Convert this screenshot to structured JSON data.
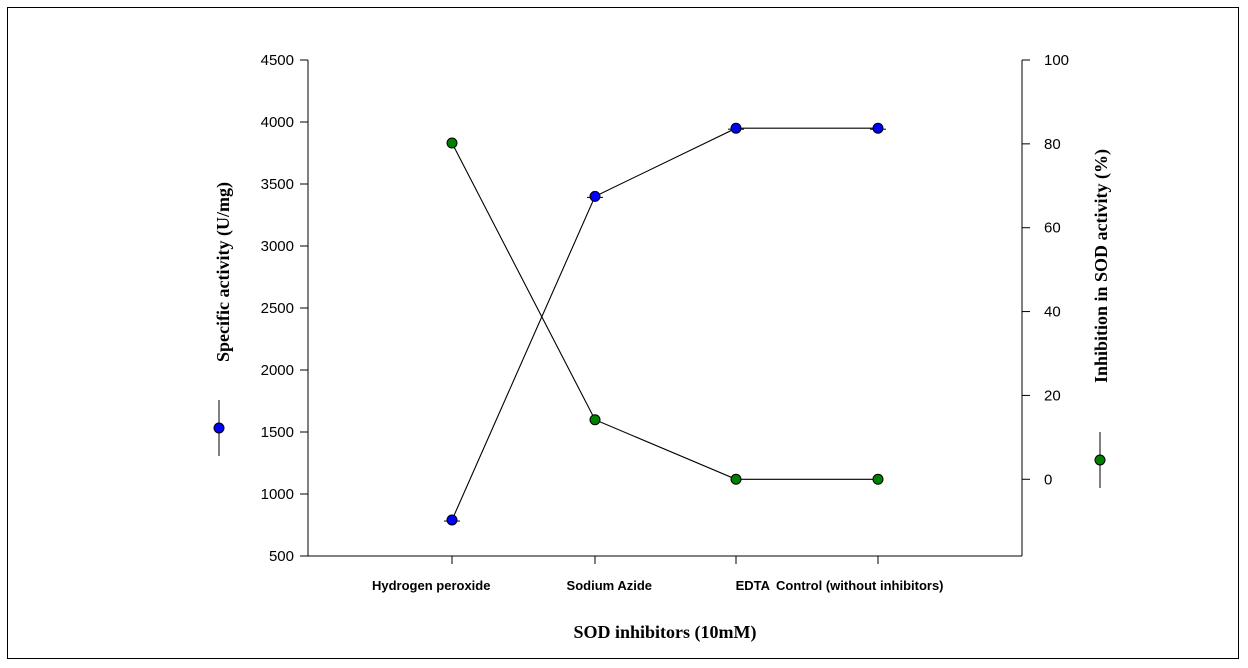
{
  "chart_data": {
    "type": "line",
    "title": "",
    "xlabel": "SOD inhibitors (10mM)",
    "categories": [
      "Hydrogen peroxide",
      "Sodium Azide",
      "EDTA",
      "Control (without inhibitors)"
    ],
    "y_left": {
      "label": "Specific activity (U/mg)",
      "ylim": [
        500,
        4500
      ],
      "ticks": [
        500,
        1000,
        1500,
        2000,
        2500,
        3000,
        3500,
        4000,
        4500
      ]
    },
    "y_right": {
      "label": "Inhibition in SOD activity (%)",
      "ylim": [
        -18.3,
        100
      ],
      "ticks": [
        0,
        20,
        40,
        60,
        80,
        100
      ]
    },
    "series": [
      {
        "axis": "left",
        "values": [
          790,
          3400,
          3950,
          3950
        ],
        "color": "#0000ff"
      },
      {
        "axis": "right",
        "values": [
          80.2,
          14.2,
          0,
          0
        ],
        "color": "#008000"
      }
    ],
    "grid": false
  }
}
